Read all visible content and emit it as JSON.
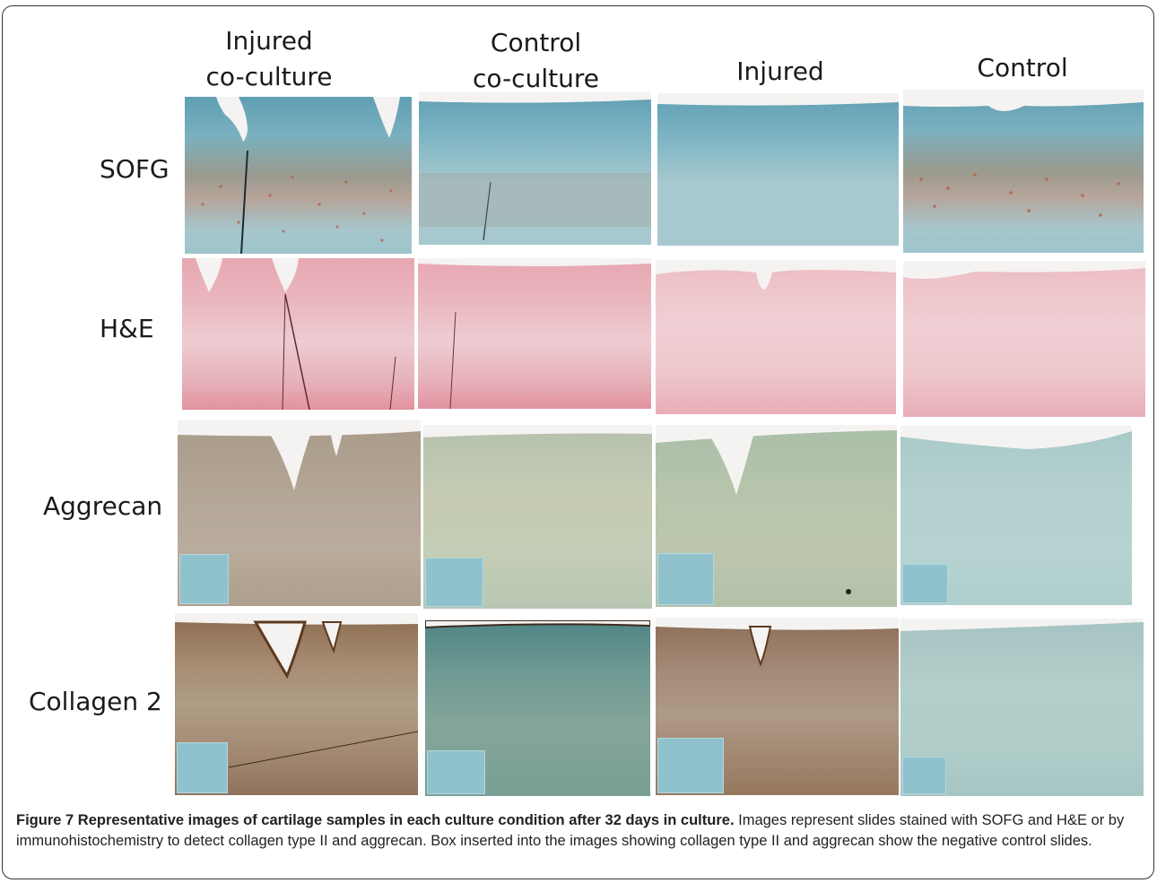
{
  "column_headers": {
    "col1": "Injured\nco-culture",
    "col2": "Control\nco-culture",
    "col3": "Injured",
    "col4": "Control"
  },
  "row_labels": {
    "row1": "SOFG",
    "row2": "H&E",
    "row3": "Aggrecan",
    "row4": "Collagen 2"
  },
  "caption": {
    "label": "Figure 7",
    "title": "Representative images of cartilage samples in each culture condition after 32 days in culture.",
    "body": "Images represent slides stained with SOFG and H&E or by immunohistochemistry to detect collagen type II and aggrecan. Box inserted into the images showing collagen type II and aggrecan show the negative control slides."
  },
  "colors": {
    "sofg_blue": "#6aa7b8",
    "he_pink": "#e9b2ba",
    "dab_brown": "#a4896f",
    "negative_control_blue": "#8fc2cc"
  }
}
